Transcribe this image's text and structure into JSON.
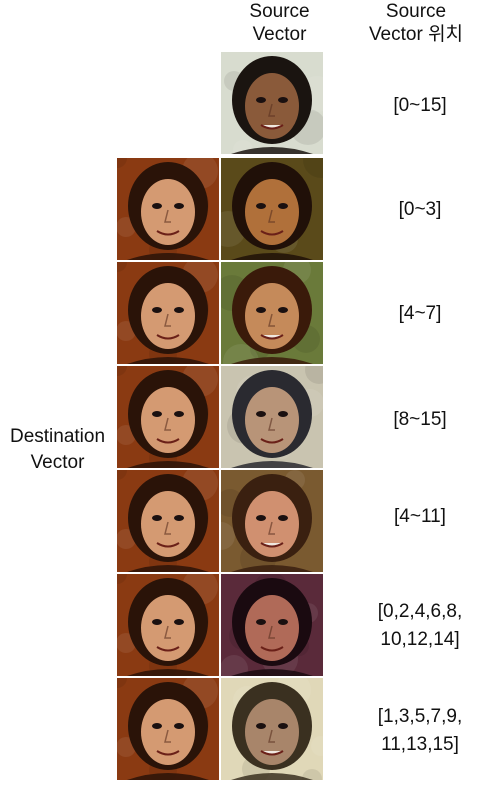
{
  "headers": {
    "source_vector": [
      "Source",
      "Vector"
    ],
    "source_vector_position": [
      "Source",
      "Vector 위치"
    ]
  },
  "destination_label": [
    "Destination",
    "Vector"
  ],
  "rows": [
    {
      "position_lines": [
        "[0~15]"
      ]
    },
    {
      "position_lines": [
        "[0~3]"
      ]
    },
    {
      "position_lines": [
        "[4~7]"
      ]
    },
    {
      "position_lines": [
        "[8~15]"
      ]
    },
    {
      "position_lines": [
        "[4~11]"
      ]
    },
    {
      "position_lines": [
        "[0,2,4,6,8,",
        "10,12,14]"
      ]
    },
    {
      "position_lines": [
        "[1,3,5,7,9,",
        "11,13,15]"
      ]
    }
  ],
  "palette": {
    "dest_bg": "#8a3a12",
    "dest_skin": "#d49a72",
    "dest_hair": "#2a1308",
    "src_bgs": [
      "#d8dccf",
      "#5a4a1a",
      "#6a7a3a",
      "#c9c4b0",
      "#7a5a30",
      "#5a2a3a",
      "#e0d8b8"
    ],
    "src_skins": [
      "#8a5a3a",
      "#b0703a",
      "#c58a5a",
      "#b89478",
      "#d09070",
      "#b06a58",
      "#a8856a"
    ],
    "src_hairs": [
      "#1a1410",
      "#201008",
      "#3a1a0a",
      "#2a2a30",
      "#3a2010",
      "#1a0a10",
      "#3a3020"
    ]
  }
}
